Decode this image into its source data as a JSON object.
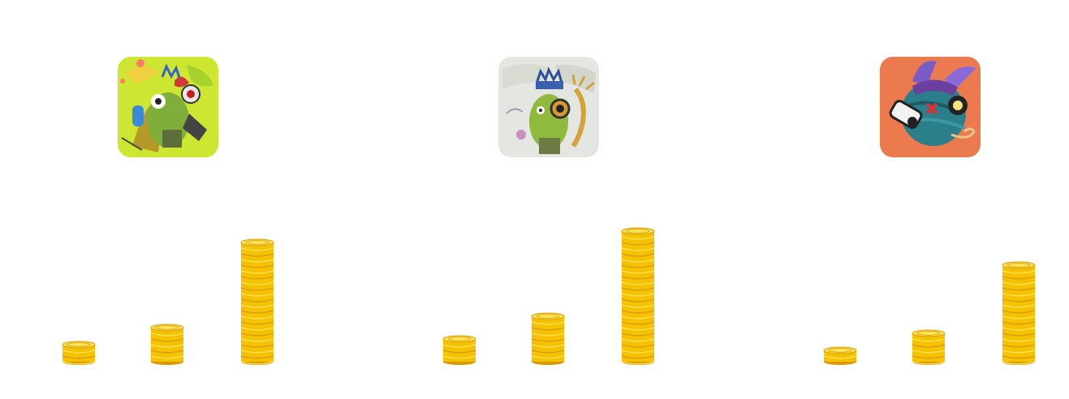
{
  "cards": [
    {
      "avatar": {
        "icon": "green-creature-on-yellow-map-icon",
        "background": "#cde632"
      },
      "coin_stacks": [
        {
          "value": 3
        },
        {
          "value": 6
        },
        {
          "value": 21
        }
      ]
    },
    {
      "avatar": {
        "icon": "green-creature-with-goggles-icon",
        "background": "#e4e6e2"
      },
      "coin_stacks": [
        {
          "value": 4
        },
        {
          "value": 8
        },
        {
          "value": 23
        }
      ]
    },
    {
      "avatar": {
        "icon": "blue-ball-with-camera-icon",
        "background": "#ec7a4f"
      },
      "coin_stacks": [
        {
          "value": 2
        },
        {
          "value": 5
        },
        {
          "value": 17
        }
      ]
    }
  ],
  "colors": {
    "coin_gold": "#f6c200",
    "coin_light": "#ffe45a",
    "coin_dark": "#d99a00"
  }
}
